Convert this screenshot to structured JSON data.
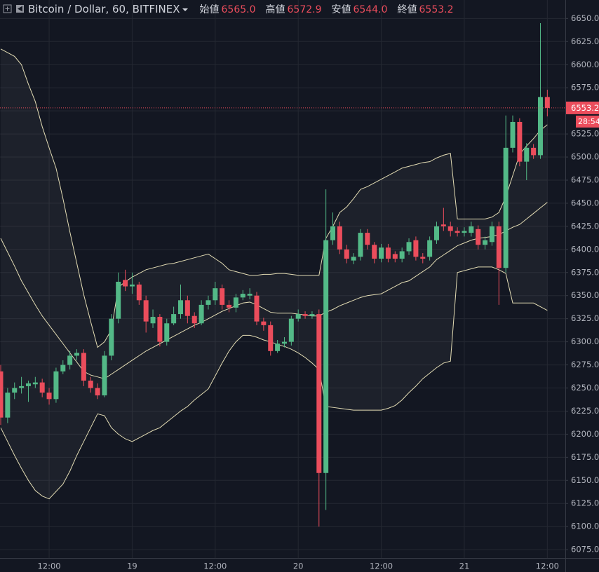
{
  "chart_data": {
    "type": "candlestick",
    "title": "Bitcoin / Dollar, 60, BITFINEX",
    "header": [
      {
        "label": "始値",
        "value": "6565.0"
      },
      {
        "label": "高値",
        "value": "6572.9"
      },
      {
        "label": "安値",
        "value": "6544.0"
      },
      {
        "label": "終値",
        "value": "6553.2"
      }
    ],
    "countdown": "28:54",
    "up_color": "#53b987",
    "down_color": "#eb4d5c",
    "band_color": "#e3dcb4",
    "categories": [
      null,
      null,
      null,
      null,
      null,
      null,
      null,
      "12:00",
      null,
      null,
      null,
      null,
      null,
      null,
      null,
      null,
      null,
      null,
      null,
      "19",
      null,
      null,
      null,
      null,
      null,
      null,
      null,
      null,
      null,
      null,
      null,
      "12:00",
      null,
      null,
      null,
      null,
      null,
      null,
      null,
      null,
      null,
      null,
      null,
      "20",
      null,
      null,
      null,
      null,
      null,
      null,
      null,
      null,
      null,
      null,
      null,
      "12:00",
      null,
      null,
      null,
      null,
      null,
      null,
      null,
      null,
      null,
      null,
      null,
      "21",
      null,
      null,
      null,
      null,
      null,
      null,
      null,
      null,
      null,
      null,
      null,
      "12:00"
    ],
    "open": [
      6268,
      6218,
      6245,
      6250,
      6252,
      6254,
      6256,
      6245,
      6238,
      6268,
      6275,
      6285,
      6288,
      6258,
      6250,
      6242,
      6285,
      6325,
      6367,
      6360,
      6362,
      6345,
      6320,
      6327,
      6300,
      6320,
      6330,
      6345,
      6328,
      6320,
      6340,
      6345,
      6358,
      6340,
      6337,
      6348,
      6350,
      6350,
      6322,
      6318,
      6290,
      6298,
      6300,
      6325,
      6330,
      6328,
      6330,
      6158,
      6410,
      6425,
      6400,
      6388,
      6392,
      6418,
      6405,
      6390,
      6402,
      6395,
      6390,
      6398,
      6410,
      6392,
      6392,
      6410,
      6427,
      6425,
      6420,
      6418,
      6418,
      6422,
      6405,
      6408,
      6425,
      6380,
      6510,
      6538,
      6495,
      6510,
      6502,
      6565
    ],
    "high": [
      6275,
      6250,
      6256,
      6262,
      6258,
      6262,
      6260,
      6250,
      6272,
      6280,
      6290,
      6292,
      6292,
      6262,
      6255,
      6290,
      6330,
      6375,
      6378,
      6375,
      6365,
      6350,
      6335,
      6330,
      6325,
      6338,
      6362,
      6350,
      6332,
      6345,
      6350,
      6365,
      6362,
      6345,
      6352,
      6356,
      6358,
      6354,
      6326,
      6322,
      6302,
      6305,
      6328,
      6335,
      6333,
      6333,
      6335,
      6465,
      6440,
      6430,
      6405,
      6396,
      6422,
      6422,
      6408,
      6406,
      6406,
      6398,
      6402,
      6412,
      6414,
      6396,
      6414,
      6430,
      6445,
      6430,
      6424,
      6424,
      6430,
      6426,
      6414,
      6430,
      6430,
      6545,
      6545,
      6542,
      6515,
      6514,
      6645,
      6572.9
    ],
    "low": [
      6210,
      6212,
      6238,
      6244,
      6235,
      6250,
      6240,
      6232,
      6234,
      6265,
      6270,
      6280,
      6252,
      6245,
      6238,
      6240,
      6280,
      6320,
      6355,
      6352,
      6340,
      6310,
      6315,
      6295,
      6296,
      6318,
      6325,
      6320,
      6315,
      6318,
      6335,
      6340,
      6335,
      6332,
      6332,
      6345,
      6346,
      6318,
      6312,
      6285,
      6288,
      6294,
      6296,
      6322,
      6325,
      6325,
      6100,
      6118,
      6405,
      6395,
      6385,
      6384,
      6388,
      6400,
      6385,
      6386,
      6386,
      6386,
      6386,
      6394,
      6388,
      6385,
      6388,
      6406,
      6420,
      6414,
      6414,
      6414,
      6414,
      6400,
      6400,
      6404,
      6340,
      6375,
      6505,
      6490,
      6475,
      6498,
      6498,
      6544
    ],
    "close": [
      6218,
      6245,
      6250,
      6252,
      6255,
      6256,
      6245,
      6238,
      6268,
      6275,
      6285,
      6288,
      6258,
      6250,
      6242,
      6285,
      6325,
      6365,
      6360,
      6362,
      6345,
      6322,
      6327,
      6300,
      6320,
      6330,
      6345,
      6328,
      6320,
      6340,
      6345,
      6358,
      6340,
      6337,
      6348,
      6352,
      6352,
      6322,
      6318,
      6290,
      6298,
      6300,
      6325,
      6330,
      6328,
      6330,
      6158,
      6410,
      6425,
      6400,
      6390,
      6392,
      6418,
      6405,
      6390,
      6402,
      6390,
      6390,
      6398,
      6408,
      6392,
      6390,
      6410,
      6425,
      6425,
      6420,
      6418,
      6420,
      6425,
      6405,
      6410,
      6425,
      6380,
      6510,
      6538,
      6495,
      6510,
      6502,
      6565,
      6553.2
    ],
    "bollinger": {
      "upper": [
        6617,
        6613,
        6609,
        6600,
        6579,
        6560,
        6533,
        6510,
        6488,
        6455,
        6419,
        6385,
        6351,
        6322,
        6294,
        6300,
        6313,
        6359,
        6365,
        6370,
        6374,
        6378,
        6380,
        6382,
        6384,
        6385,
        6387,
        6389,
        6391,
        6393,
        6395,
        6390,
        6385,
        6378,
        6376,
        6374,
        6372,
        6372,
        6373,
        6373,
        6374,
        6374,
        6373,
        6372,
        6372,
        6372,
        6372,
        6412,
        6425,
        6440,
        6446,
        6455,
        6465,
        6468,
        6472,
        6476,
        6480,
        6484,
        6488,
        6490,
        6492,
        6494,
        6495,
        6499,
        6502,
        6504,
        6433,
        6433,
        6433,
        6433,
        6433,
        6435,
        6440,
        6457,
        6480,
        6503,
        6512,
        6520,
        6529,
        6535
      ],
      "middle": [
        6412,
        6397,
        6382,
        6366,
        6353,
        6340,
        6328,
        6318,
        6308,
        6298,
        6288,
        6278,
        6268,
        6264,
        6262,
        6260,
        6265,
        6270,
        6275,
        6280,
        6285,
        6290,
        6294,
        6298,
        6302,
        6306,
        6310,
        6314,
        6318,
        6321,
        6325,
        6329,
        6333,
        6336,
        6339,
        6342,
        6343,
        6340,
        6336,
        6332,
        6331,
        6331,
        6331,
        6330,
        6329,
        6328,
        6328,
        6332,
        6335,
        6339,
        6342,
        6345,
        6348,
        6350,
        6351,
        6352,
        6356,
        6360,
        6364,
        6366,
        6371,
        6376,
        6381,
        6389,
        6394,
        6399,
        6404,
        6407,
        6410,
        6412,
        6413,
        6414,
        6416,
        6420,
        6424,
        6427,
        6433,
        6439,
        6445,
        6451
      ],
      "lower": [
        6207,
        6192,
        6177,
        6163,
        6150,
        6139,
        6133,
        6130,
        6138,
        6146,
        6160,
        6177,
        6192,
        6207,
        6222,
        6220,
        6207,
        6200,
        6195,
        6192,
        6196,
        6200,
        6204,
        6207,
        6213,
        6219,
        6225,
        6230,
        6237,
        6243,
        6249,
        6263,
        6277,
        6290,
        6300,
        6307,
        6307,
        6305,
        6302,
        6300,
        6297,
        6295,
        6292,
        6288,
        6283,
        6277,
        6270,
        6230,
        6229,
        6228,
        6227,
        6226,
        6226,
        6226,
        6226,
        6226,
        6228,
        6231,
        6237,
        6245,
        6252,
        6260,
        6266,
        6272,
        6277,
        6279,
        6375,
        6377,
        6379,
        6381,
        6381,
        6381,
        6378,
        6374,
        6342,
        6342,
        6342,
        6342,
        6338,
        6334
      ]
    },
    "ylim": [
      6066,
      6670
    ],
    "yticks": [
      {
        "value": 6075,
        "label": "6075.0"
      },
      {
        "value": 6100,
        "label": "6100.0"
      },
      {
        "value": 6125,
        "label": "6125.0"
      },
      {
        "value": 6150,
        "label": "6150.0"
      },
      {
        "value": 6175,
        "label": "6175.0"
      },
      {
        "value": 6200,
        "label": "6200.0"
      },
      {
        "value": 6225,
        "label": "6225.0"
      },
      {
        "value": 6250,
        "label": "6250.0"
      },
      {
        "value": 6275,
        "label": "6275.0"
      },
      {
        "value": 6300,
        "label": "6300.0"
      },
      {
        "value": 6325,
        "label": "6325.0"
      },
      {
        "value": 6350,
        "label": "6350.0"
      },
      {
        "value": 6375,
        "label": "6375.0"
      },
      {
        "value": 6400,
        "label": "6400.0"
      },
      {
        "value": 6425,
        "label": "6425.0"
      },
      {
        "value": 6450,
        "label": "6450.0"
      },
      {
        "value": 6475,
        "label": "6475.0"
      },
      {
        "value": 6500,
        "label": "6500.0"
      },
      {
        "value": 6525,
        "label": "6525.0"
      },
      {
        "value": 6550,
        "label": "6550.0"
      },
      {
        "value": 6575,
        "label": "6575.0"
      },
      {
        "value": 6600,
        "label": "6600.0"
      },
      {
        "value": 6625,
        "label": "6625.0"
      },
      {
        "value": 6650,
        "label": "6650.0"
      }
    ],
    "grid": true
  }
}
